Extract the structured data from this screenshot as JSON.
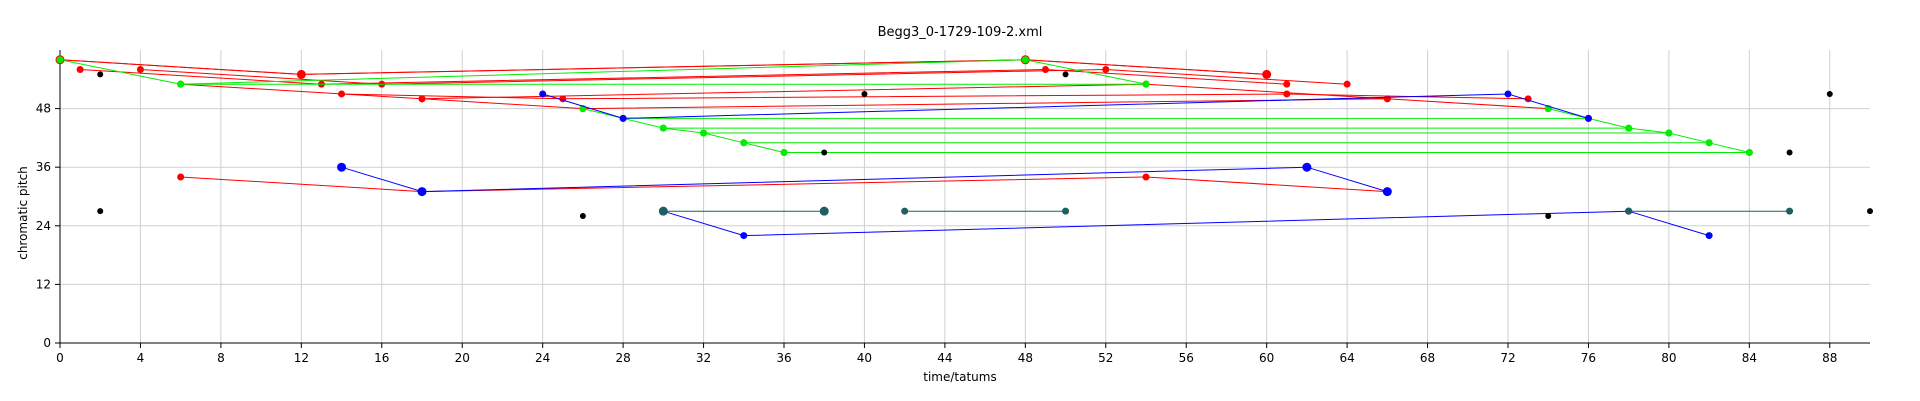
{
  "chart_data": {
    "type": "scatter",
    "title": "Begg3_0-1729-109-2.xml",
    "xlabel": "time/tatums",
    "ylabel": "chromatic pitch",
    "xlim": [
      0,
      90
    ],
    "ylim": [
      0,
      60
    ],
    "xticks": [
      0,
      4,
      8,
      12,
      16,
      20,
      24,
      28,
      32,
      36,
      40,
      44,
      48,
      52,
      56,
      60,
      64,
      68,
      72,
      76,
      80,
      84,
      88
    ],
    "yticks": [
      0,
      12,
      24,
      36,
      48
    ],
    "grid": true,
    "colors": {
      "red": "#ff0000",
      "green": "#00ee00",
      "blue": "#0000ff",
      "teal": "#1f5f5f",
      "black": "#000000"
    },
    "series": [
      {
        "color": "red",
        "kind": "line",
        "size": 4.5,
        "points": [
          [
            0,
            58
          ],
          [
            12,
            55
          ],
          [
            48,
            58
          ],
          [
            60,
            55
          ]
        ]
      },
      {
        "color": "red",
        "kind": "line",
        "size": 3.5,
        "points": [
          [
            0,
            58
          ],
          [
            12,
            55
          ],
          [
            48,
            58
          ],
          [
            60,
            55
          ]
        ]
      },
      {
        "color": "red",
        "kind": "line",
        "size": 3.5,
        "points": [
          [
            1,
            56
          ],
          [
            13,
            53
          ],
          [
            49,
            56
          ],
          [
            61,
            53
          ]
        ]
      },
      {
        "color": "red",
        "kind": "line",
        "size": 3.5,
        "points": [
          [
            4,
            56
          ],
          [
            16,
            53
          ],
          [
            52,
            56
          ],
          [
            64,
            53
          ]
        ]
      },
      {
        "color": "red",
        "kind": "line",
        "size": 3.5,
        "points": [
          [
            6,
            53
          ],
          [
            18,
            50
          ],
          [
            54,
            53
          ],
          [
            66,
            50
          ]
        ]
      },
      {
        "color": "red",
        "kind": "line",
        "size": 3.5,
        "points": [
          [
            14,
            51
          ],
          [
            25,
            50
          ],
          [
            61,
            51
          ],
          [
            73,
            50
          ]
        ]
      },
      {
        "color": "red",
        "kind": "line",
        "size": 3.5,
        "points": [
          [
            18,
            50
          ],
          [
            26,
            48
          ],
          [
            66,
            50
          ],
          [
            74,
            48
          ]
        ]
      },
      {
        "color": "red",
        "kind": "line",
        "size": 3.5,
        "points": [
          [
            6,
            34
          ],
          [
            18,
            31
          ],
          [
            54,
            34
          ],
          [
            66,
            31
          ]
        ]
      },
      {
        "color": "green",
        "kind": "line",
        "size": 3.5,
        "points": [
          [
            0,
            58
          ],
          [
            6,
            53
          ],
          [
            48,
            58
          ],
          [
            54,
            53
          ]
        ]
      },
      {
        "color": "green",
        "kind": "line",
        "size": 3.5,
        "points": [
          [
            6,
            53
          ],
          [
            54,
            53
          ]
        ]
      },
      {
        "color": "green",
        "kind": "line",
        "size": 3.5,
        "points": [
          [
            26,
            48
          ],
          [
            28,
            46
          ],
          [
            30,
            44
          ],
          [
            32,
            43
          ],
          [
            34,
            41
          ],
          [
            36,
            39
          ]
        ]
      },
      {
        "color": "green",
        "kind": "line",
        "size": 3.5,
        "points": [
          [
            74,
            48
          ],
          [
            76,
            46
          ],
          [
            78,
            44
          ],
          [
            80,
            43
          ],
          [
            82,
            41
          ],
          [
            84,
            39
          ]
        ]
      },
      {
        "color": "green",
        "kind": "line",
        "size": 3.5,
        "points": [
          [
            28,
            46
          ],
          [
            76,
            46
          ]
        ]
      },
      {
        "color": "green",
        "kind": "line",
        "size": 3.5,
        "points": [
          [
            30,
            44
          ],
          [
            78,
            44
          ]
        ]
      },
      {
        "color": "green",
        "kind": "line",
        "size": 3.5,
        "points": [
          [
            32,
            43
          ],
          [
            80,
            43
          ]
        ]
      },
      {
        "color": "green",
        "kind": "line",
        "size": 3.5,
        "points": [
          [
            34,
            41
          ],
          [
            82,
            41
          ]
        ]
      },
      {
        "color": "green",
        "kind": "line",
        "size": 3.5,
        "points": [
          [
            36,
            39
          ],
          [
            84,
            39
          ]
        ]
      },
      {
        "color": "blue",
        "kind": "line",
        "size": 3.5,
        "points": [
          [
            24,
            51
          ],
          [
            28,
            46
          ],
          [
            72,
            51
          ],
          [
            76,
            46
          ]
        ]
      },
      {
        "color": "blue",
        "kind": "line",
        "size": 4.5,
        "points": [
          [
            14,
            36
          ],
          [
            18,
            31
          ],
          [
            62,
            36
          ],
          [
            66,
            31
          ]
        ]
      },
      {
        "color": "blue",
        "kind": "line",
        "size": 3.5,
        "points": [
          [
            30,
            27
          ],
          [
            34,
            22
          ],
          [
            78,
            27
          ],
          [
            82,
            22
          ]
        ]
      },
      {
        "color": "teal",
        "kind": "line",
        "size": 4.5,
        "points": [
          [
            30,
            27
          ],
          [
            38,
            27
          ]
        ]
      },
      {
        "color": "teal",
        "kind": "line",
        "size": 3.5,
        "points": [
          [
            42,
            27
          ],
          [
            50,
            27
          ]
        ]
      },
      {
        "color": "teal",
        "kind": "line",
        "size": 3.5,
        "points": [
          [
            78,
            27
          ],
          [
            86,
            27
          ]
        ]
      },
      {
        "color": "black",
        "kind": "points",
        "size": 3,
        "points": [
          [
            2,
            55
          ],
          [
            2,
            27
          ],
          [
            26,
            26
          ],
          [
            38,
            39
          ],
          [
            40,
            51
          ],
          [
            50,
            55
          ],
          [
            74,
            26
          ],
          [
            86,
            39
          ],
          [
            88,
            51
          ],
          [
            90,
            27
          ]
        ]
      }
    ]
  }
}
